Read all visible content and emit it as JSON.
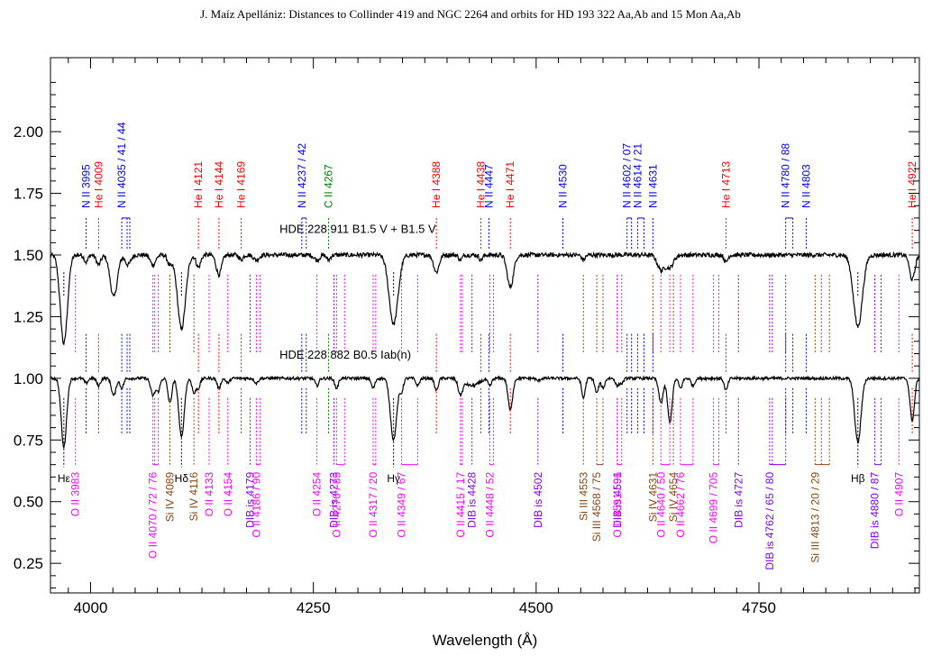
{
  "header": {
    "title": "J. Maíz Apellániz: Distances to Collinder 419 and NGC 2264 and orbits for HD 193 322 Aa,Ab and 15 Mon Aa,Ab"
  },
  "colors": {
    "N": "#0000ff",
    "He": "#ff0000",
    "C": "#008000",
    "O": "#ff00ff",
    "Si": "#8b4513",
    "DIB": "#8000ff",
    "H": "#000000",
    "spectrum": "#000000"
  },
  "chart_data": {
    "type": "line",
    "xlabel": "Wavelength (Å)",
    "ylabel": "",
    "xlim": [
      3955,
      4930
    ],
    "ylim": [
      0.13,
      2.3
    ],
    "xticks": [
      4000,
      4250,
      4500,
      4750
    ],
    "xtick_labels": [
      "4000",
      "4250",
      "4500",
      "4750"
    ],
    "yticks": [
      0.25,
      0.5,
      0.75,
      1.0,
      1.25,
      1.5,
      1.75,
      2.0
    ],
    "ytick_labels": [
      "0.25",
      "0.50",
      "0.75",
      "1.00",
      "1.25",
      "1.50",
      "1.75",
      "2.00"
    ],
    "series": [
      {
        "name": "HDE 228 911   B1.5 V + B1.5 V",
        "continuum": 1.5,
        "absorptions": [
          {
            "w": 3970,
            "d": 0.36,
            "s": 4
          },
          {
            "w": 3995,
            "d": 0.03,
            "s": 2
          },
          {
            "w": 4009,
            "d": 0.04,
            "s": 2.5
          },
          {
            "w": 4026,
            "d": 0.17,
            "s": 4
          },
          {
            "w": 4042,
            "d": 0.04,
            "s": 3
          },
          {
            "w": 4070,
            "d": 0.04,
            "s": 3
          },
          {
            "w": 4089,
            "d": 0.04,
            "s": 2.5
          },
          {
            "w": 4102,
            "d": 0.3,
            "s": 4.5
          },
          {
            "w": 4121,
            "d": 0.05,
            "s": 2.5
          },
          {
            "w": 4144,
            "d": 0.08,
            "s": 3
          },
          {
            "w": 4169,
            "d": 0.02,
            "s": 2
          },
          {
            "w": 4186,
            "d": 0.02,
            "s": 3
          },
          {
            "w": 4254,
            "d": 0.02,
            "s": 3
          },
          {
            "w": 4267,
            "d": 0.02,
            "s": 2
          },
          {
            "w": 4340,
            "d": 0.28,
            "s": 5
          },
          {
            "w": 4388,
            "d": 0.07,
            "s": 3
          },
          {
            "w": 4415,
            "d": 0.02,
            "s": 2
          },
          {
            "w": 4438,
            "d": 0.02,
            "s": 2
          },
          {
            "w": 4471,
            "d": 0.13,
            "s": 3.5
          },
          {
            "w": 4553,
            "d": 0.02,
            "s": 2
          },
          {
            "w": 4640,
            "d": 0.06,
            "s": 4
          },
          {
            "w": 4650,
            "d": 0.05,
            "s": 4
          },
          {
            "w": 4713,
            "d": 0.03,
            "s": 2
          },
          {
            "w": 4861,
            "d": 0.29,
            "s": 5
          },
          {
            "w": 4922,
            "d": 0.1,
            "s": 3
          }
        ]
      },
      {
        "name": "HDE 228 882    B0.5 Iab(n)",
        "continuum": 1.0,
        "absorptions": [
          {
            "w": 3970,
            "d": 0.28,
            "s": 3
          },
          {
            "w": 3995,
            "d": 0.02,
            "s": 2
          },
          {
            "w": 4009,
            "d": 0.03,
            "s": 2
          },
          {
            "w": 4026,
            "d": 0.07,
            "s": 2.5
          },
          {
            "w": 4035,
            "d": 0.04,
            "s": 2
          },
          {
            "w": 4070,
            "d": 0.07,
            "s": 2.5
          },
          {
            "w": 4076,
            "d": 0.05,
            "s": 2
          },
          {
            "w": 4089,
            "d": 0.1,
            "s": 2.2
          },
          {
            "w": 4102,
            "d": 0.24,
            "s": 3
          },
          {
            "w": 4116,
            "d": 0.06,
            "s": 2
          },
          {
            "w": 4121,
            "d": 0.04,
            "s": 2
          },
          {
            "w": 4144,
            "d": 0.04,
            "s": 2
          },
          {
            "w": 4154,
            "d": 0.02,
            "s": 2
          },
          {
            "w": 4186,
            "d": 0.02,
            "s": 2
          },
          {
            "w": 4254,
            "d": 0.03,
            "s": 2
          },
          {
            "w": 4276,
            "d": 0.04,
            "s": 2
          },
          {
            "w": 4317,
            "d": 0.04,
            "s": 2
          },
          {
            "w": 4340,
            "d": 0.25,
            "s": 3.5
          },
          {
            "w": 4349,
            "d": 0.05,
            "s": 2
          },
          {
            "w": 4367,
            "d": 0.03,
            "s": 2
          },
          {
            "w": 4388,
            "d": 0.05,
            "s": 2
          },
          {
            "w": 4415,
            "d": 0.06,
            "s": 2.5
          },
          {
            "w": 4428,
            "d": 0.03,
            "s": 8
          },
          {
            "w": 4448,
            "d": 0.03,
            "s": 2
          },
          {
            "w": 4471,
            "d": 0.13,
            "s": 2.5
          },
          {
            "w": 4502,
            "d": 0.01,
            "s": 2
          },
          {
            "w": 4553,
            "d": 0.08,
            "s": 2
          },
          {
            "w": 4568,
            "d": 0.06,
            "s": 2
          },
          {
            "w": 4575,
            "d": 0.04,
            "s": 2
          },
          {
            "w": 4591,
            "d": 0.03,
            "s": 2
          },
          {
            "w": 4596,
            "d": 0.02,
            "s": 2
          },
          {
            "w": 4640,
            "d": 0.1,
            "s": 2.5
          },
          {
            "w": 4650,
            "d": 0.18,
            "s": 2.5
          },
          {
            "w": 4662,
            "d": 0.04,
            "s": 2
          },
          {
            "w": 4676,
            "d": 0.03,
            "s": 2
          },
          {
            "w": 4713,
            "d": 0.05,
            "s": 2
          },
          {
            "w": 4861,
            "d": 0.26,
            "s": 3.5
          },
          {
            "w": 4922,
            "d": 0.17,
            "s": 2.5
          }
        ]
      }
    ],
    "spectrum_labels": [
      {
        "text": "HDE 228 911   B1.5 V + B1.5 V",
        "x": 4212,
        "y": 1.59
      },
      {
        "text": "HDE 228 882    B0.5 Iab(n)",
        "x": 4212,
        "y": 1.08
      }
    ],
    "lines_top": [
      {
        "label": "N II 3995",
        "el": "N",
        "w": [
          3995
        ]
      },
      {
        "label": "He I 4009",
        "el": "He",
        "w": [
          4009
        ]
      },
      {
        "label": "N II 4035 / 41 / 44",
        "el": "N",
        "w": [
          4035,
          4041,
          4044
        ]
      },
      {
        "label": "He I 4121",
        "el": "He",
        "w": [
          4121
        ]
      },
      {
        "label": "He I 4144",
        "el": "He",
        "w": [
          4144
        ]
      },
      {
        "label": "He I 4169",
        "el": "He",
        "w": [
          4169
        ]
      },
      {
        "label": "N II 4237 / 42",
        "el": "N",
        "w": [
          4237,
          4242
        ]
      },
      {
        "label": "C II 4267",
        "el": "C",
        "w": [
          4267
        ]
      },
      {
        "label": "He I 4388",
        "el": "He",
        "w": [
          4388
        ]
      },
      {
        "label": "He I 4438",
        "el": "He",
        "w": [
          4438
        ]
      },
      {
        "label": "N II 4447",
        "el": "N",
        "w": [
          4447
        ]
      },
      {
        "label": "He I 4471",
        "el": "He",
        "w": [
          4471
        ]
      },
      {
        "label": "N II 4530",
        "el": "N",
        "w": [
          4530
        ]
      },
      {
        "label": "N II 4602 / 07",
        "el": "N",
        "w": [
          4602,
          4607
        ]
      },
      {
        "label": "N II 4614 / 21",
        "el": "N",
        "w": [
          4614,
          4621
        ]
      },
      {
        "label": "N II 4631",
        "el": "N",
        "w": [
          4631
        ]
      },
      {
        "label": "He I 4713",
        "el": "He",
        "w": [
          4713
        ]
      },
      {
        "label": "N II 4780 / 88",
        "el": "N",
        "w": [
          4780,
          4788
        ]
      },
      {
        "label": "N II 4803",
        "el": "N",
        "w": [
          4803
        ]
      },
      {
        "label": "He I 4922",
        "el": "He",
        "w": [
          4922
        ]
      }
    ],
    "lines_bottom": [
      {
        "label": "Hε",
        "el": "H",
        "w": [
          3970
        ],
        "row": "h"
      },
      {
        "label": "O II 3983",
        "el": "O",
        "w": [
          3983
        ],
        "row": 1
      },
      {
        "label": "O II 4070 / 72 / 76",
        "el": "O",
        "w": [
          4070,
          4072,
          4076
        ],
        "row": 2
      },
      {
        "label": "Si IV 4089",
        "el": "Si",
        "w": [
          4089
        ],
        "row": 1
      },
      {
        "label": "Hδ",
        "el": "H",
        "w": [
          4102
        ],
        "row": "h"
      },
      {
        "label": "Si IV 4116",
        "el": "Si",
        "w": [
          4116
        ],
        "row": 1
      },
      {
        "label": "O II 4133",
        "el": "O",
        "w": [
          4133
        ],
        "row": 1
      },
      {
        "label": "O II 4154",
        "el": "O",
        "w": [
          4154
        ],
        "row": 1
      },
      {
        "label": "DIB is 4179",
        "el": "DIB",
        "w": [
          4179
        ],
        "row": 1
      },
      {
        "label": "O II 4186 / 90",
        "el": "O",
        "w": [
          4186,
          4190
        ],
        "row": 2
      },
      {
        "label": "O II 4254",
        "el": "O",
        "w": [
          4254
        ],
        "row": 1
      },
      {
        "label": "DIB is 4273",
        "el": "DIB",
        "w": [
          4273
        ],
        "row": 1
      },
      {
        "label": "O II 4276 / 85",
        "el": "O",
        "w": [
          4276,
          4285
        ],
        "row": 1
      },
      {
        "label": "O II 4317 / 20",
        "el": "O",
        "w": [
          4317,
          4320
        ],
        "row": 2
      },
      {
        "label": "Hγ",
        "el": "H",
        "w": [
          4340
        ],
        "row": "h"
      },
      {
        "label": "O II 4349 / 67",
        "el": "O",
        "w": [
          4349,
          4367
        ],
        "row": 2
      },
      {
        "label": "O II 4415 / 17",
        "el": "O",
        "w": [
          4415,
          4417
        ],
        "row": 2
      },
      {
        "label": "DIB is 4428",
        "el": "DIB",
        "w": [
          4428
        ],
        "row": 1
      },
      {
        "label": "O II 4448 / 52",
        "el": "O",
        "w": [
          4448,
          4452
        ],
        "row": 2
      },
      {
        "label": "DIB is 4502",
        "el": "DIB",
        "w": [
          4502
        ],
        "row": 1
      },
      {
        "label": "Si III 4553",
        "el": "Si",
        "w": [
          4553
        ],
        "row": 1
      },
      {
        "label": "Si III 4568 / 75",
        "el": "Si",
        "w": [
          4568,
          4575
        ],
        "row": 2
      },
      {
        "label": "DIB is 4591",
        "el": "DIB",
        "w": [
          4591
        ],
        "row": 1
      },
      {
        "label": "O II 4591 / 96",
        "el": "O",
        "w": [
          4591,
          4596
        ],
        "row": 1
      },
      {
        "label": "Si IV 4631",
        "el": "Si",
        "w": [
          4631
        ],
        "row": 1
      },
      {
        "label": "O II 4640 / 50",
        "el": "O",
        "w": [
          4640,
          4650
        ],
        "row": 2
      },
      {
        "label": "Si IV 4654",
        "el": "Si",
        "w": [
          4654
        ],
        "row": 1
      },
      {
        "label": "O II 4662 / 76",
        "el": "O",
        "w": [
          4662,
          4676
        ],
        "row": 2
      },
      {
        "label": "O II 4699 / 705",
        "el": "O",
        "w": [
          4699,
          4705
        ],
        "row": 2
      },
      {
        "label": "DIB is 4727",
        "el": "DIB",
        "w": [
          4727
        ],
        "row": 1
      },
      {
        "label": "DIB is 4762 / 65 / 80",
        "el": "DIB",
        "w": [
          4762,
          4765,
          4780
        ],
        "row": 3
      },
      {
        "label": "Si III 4813 / 20 / 29",
        "el": "Si",
        "w": [
          4813,
          4820,
          4829
        ],
        "row": 3
      },
      {
        "label": "Hβ",
        "el": "H",
        "w": [
          4861
        ],
        "row": "h"
      },
      {
        "label": "DIB is 4880 / 87",
        "el": "DIB",
        "w": [
          4880,
          4887
        ],
        "row": 3
      },
      {
        "label": "O II 4907",
        "el": "O",
        "w": [
          4907
        ],
        "row": 1
      }
    ]
  }
}
